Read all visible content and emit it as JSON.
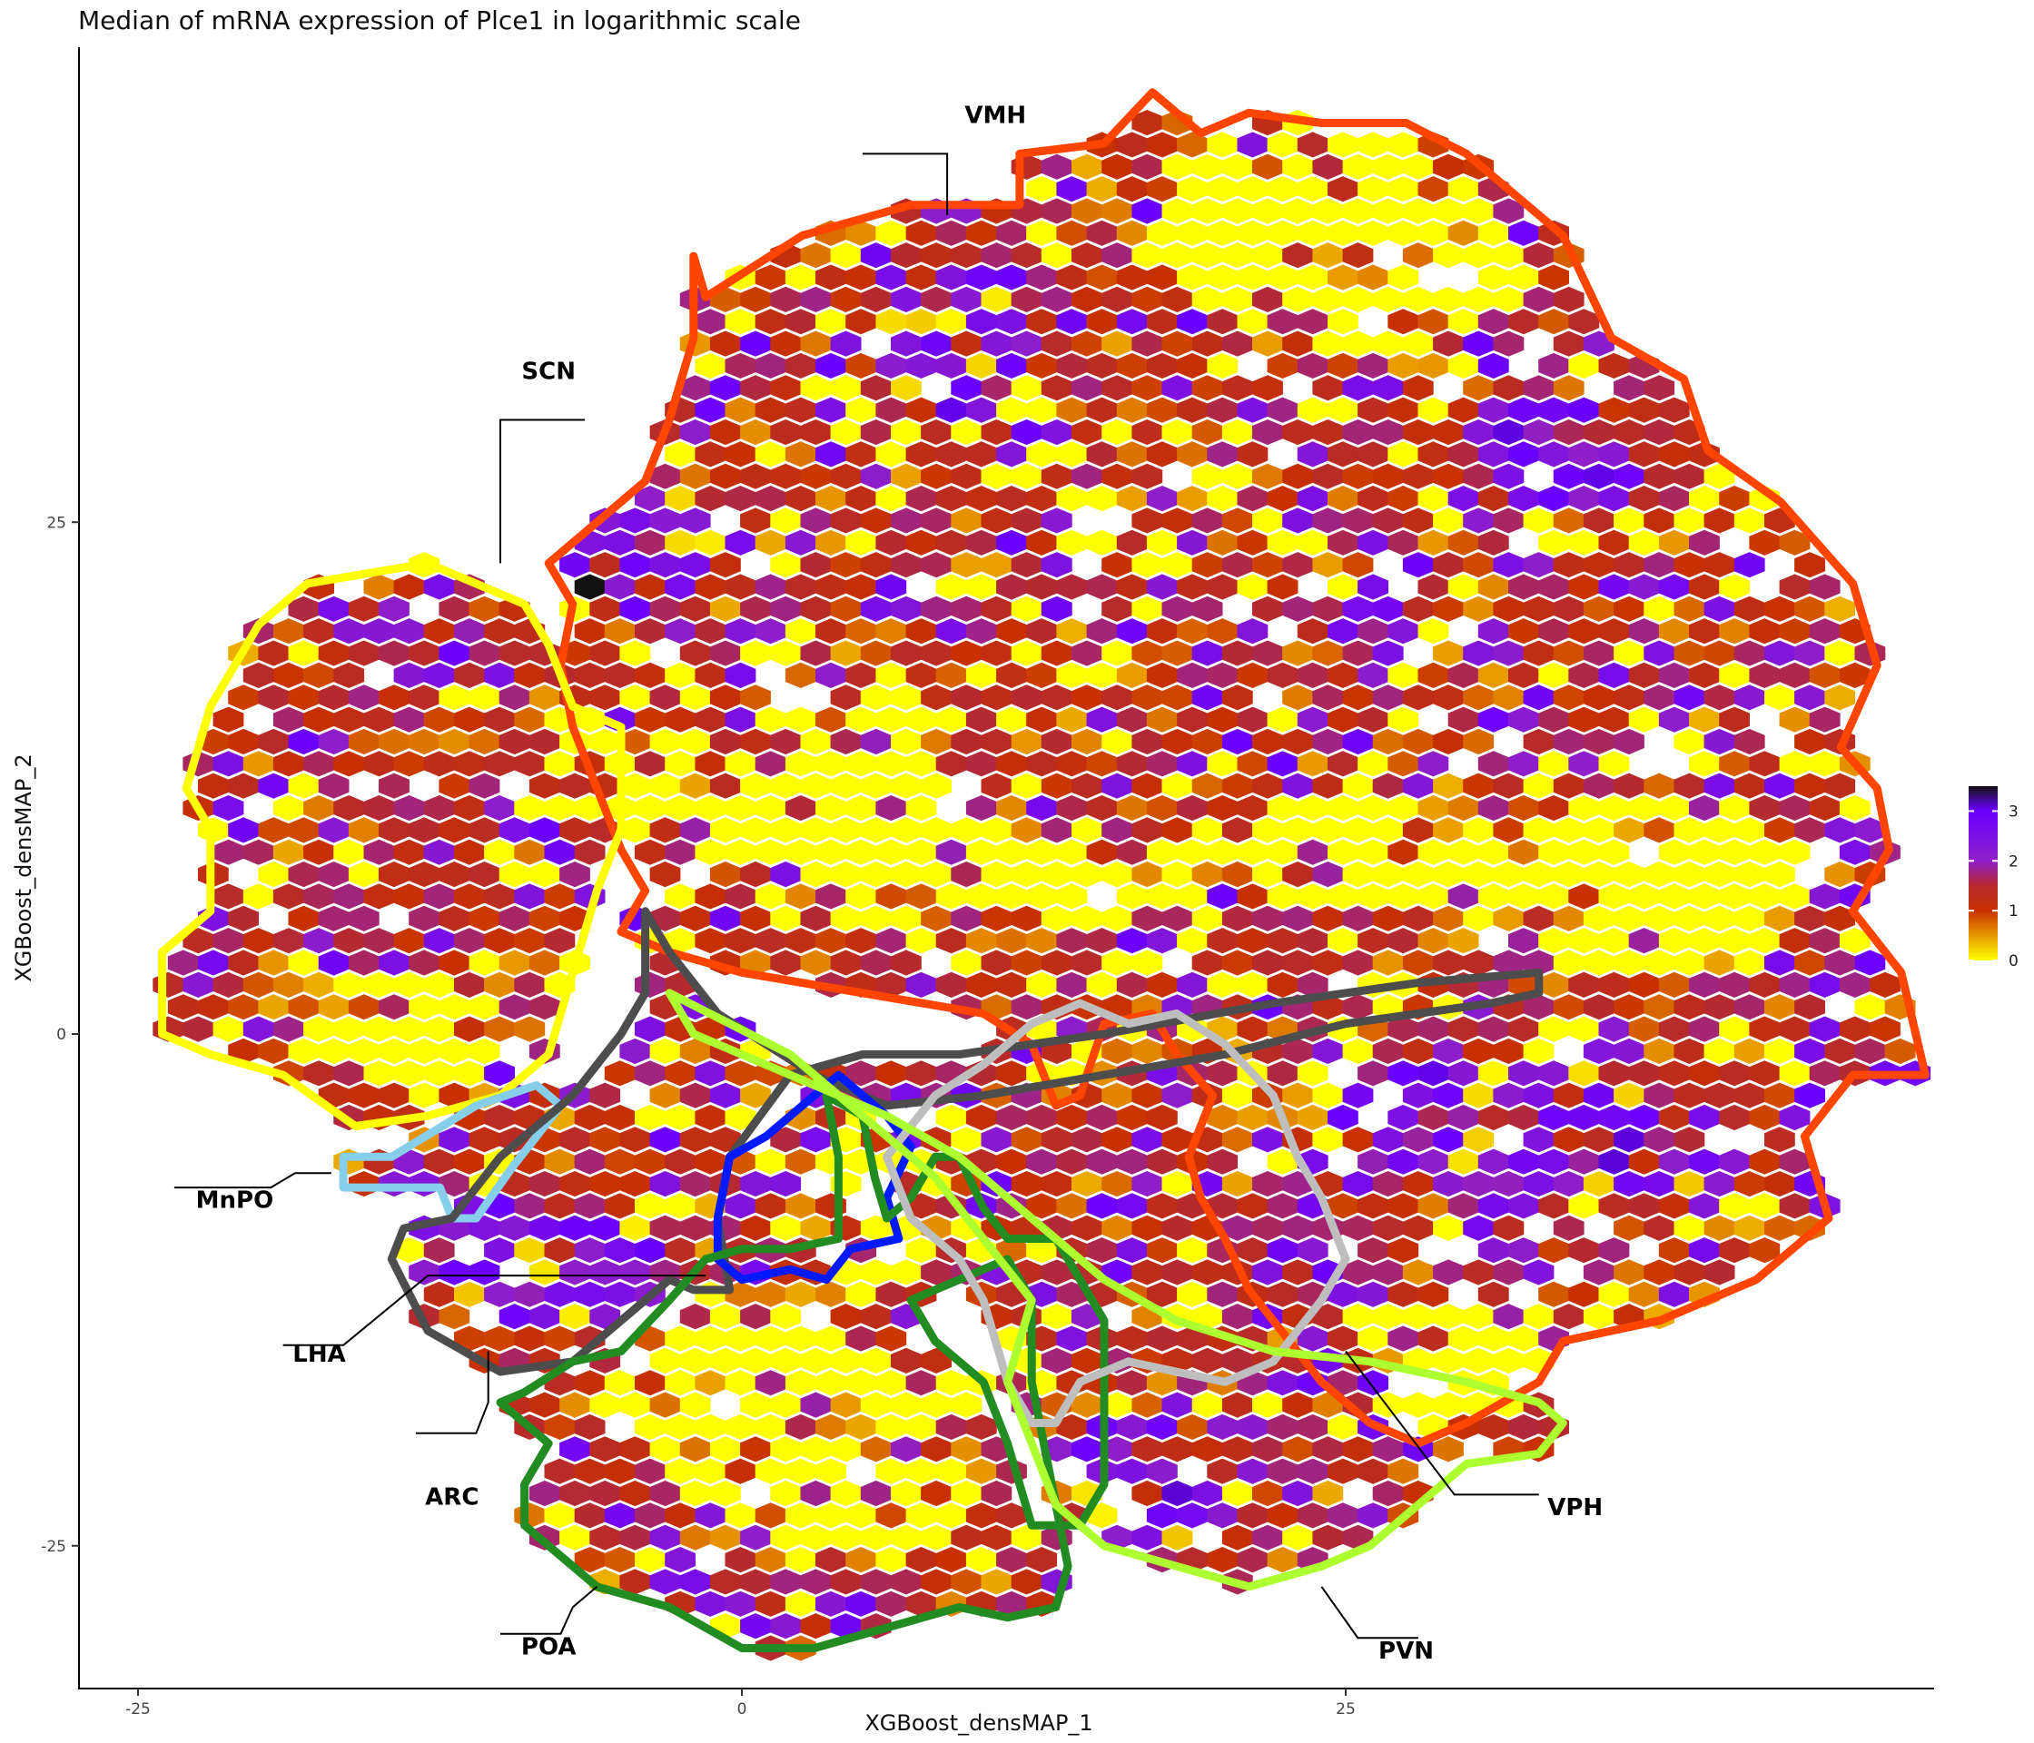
{
  "chart_data": {
    "type": "heatmap",
    "subtype": "hexbin",
    "title": "Median of mRNA expression of Plce1 in logarithmic scale",
    "xlabel": "XGBoost_densMAP_1",
    "ylabel": "XGBoost_densMAP_2",
    "xlim": [
      -28,
      59
    ],
    "ylim": [
      -32,
      48
    ],
    "x_ticks": [
      {
        "value": -25,
        "label": "-25"
      },
      {
        "value": 0,
        "label": "0"
      },
      {
        "value": 25,
        "label": "25"
      }
    ],
    "y_ticks": [
      {
        "value": 25,
        "label": "25"
      },
      {
        "value": 0,
        "label": "0"
      },
      {
        "value": -25,
        "label": "-25"
      }
    ],
    "grid": false,
    "legend": {
      "position": "right",
      "type": "colorbar",
      "range": [
        0,
        3.5
      ],
      "ticks": [
        {
          "value": 0,
          "label": "0"
        },
        {
          "value": 1,
          "label": "1"
        },
        {
          "value": 2,
          "label": "2"
        },
        {
          "value": 3,
          "label": "3"
        }
      ],
      "colors": [
        {
          "value": 0,
          "color": "#FFFF00"
        },
        {
          "value": 0.5,
          "color": "#E89A00"
        },
        {
          "value": 1,
          "color": "#C83000"
        },
        {
          "value": 1.5,
          "color": "#B52A30"
        },
        {
          "value": 2,
          "color": "#8E1FC8"
        },
        {
          "value": 3,
          "color": "#6A00FF"
        },
        {
          "value": 3.5,
          "color": "#111111"
        }
      ]
    },
    "regions": [
      {
        "label": "VMH",
        "color": "#FF4500",
        "label_at": [
          10.5,
          44.5
        ],
        "leader": [
          [
            5,
            43
          ],
          [
            8.5,
            43
          ],
          [
            8.5,
            40
          ]
        ],
        "outline": [
          [
            -2,
            38
          ],
          [
            -1.5,
            36
          ],
          [
            2.5,
            39
          ],
          [
            7,
            40.5
          ],
          [
            11.5,
            40.5
          ],
          [
            11.5,
            43
          ],
          [
            15,
            43.5
          ],
          [
            17,
            46
          ],
          [
            19,
            44
          ],
          [
            21,
            45
          ],
          [
            24,
            44.5
          ],
          [
            27.5,
            44.5
          ],
          [
            30,
            43
          ],
          [
            34,
            39
          ],
          [
            36,
            34
          ],
          [
            39,
            32
          ],
          [
            40,
            28.5
          ],
          [
            43,
            26
          ],
          [
            46,
            22
          ],
          [
            47,
            18
          ],
          [
            45.5,
            14
          ],
          [
            47,
            12
          ],
          [
            47.5,
            9
          ],
          [
            46,
            6
          ],
          [
            48,
            3
          ],
          [
            49,
            -2
          ],
          [
            46,
            -2
          ],
          [
            44,
            -5
          ],
          [
            45,
            -9
          ],
          [
            42,
            -12
          ],
          [
            38,
            -14
          ],
          [
            34,
            -15
          ],
          [
            33,
            -17
          ],
          [
            30,
            -19
          ],
          [
            28,
            -20
          ],
          [
            26,
            -19
          ],
          [
            24,
            -17
          ],
          [
            22,
            -14
          ],
          [
            21,
            -12.5
          ],
          [
            20,
            -10
          ],
          [
            19,
            -8
          ],
          [
            18.5,
            -6
          ],
          [
            19.5,
            -3
          ],
          [
            18,
            -1
          ],
          [
            17,
            1
          ],
          [
            15,
            0.5
          ],
          [
            14,
            -3
          ],
          [
            13,
            -3.5
          ],
          [
            12,
            -0.5
          ],
          [
            10,
            1
          ],
          [
            5,
            2
          ],
          [
            0,
            3
          ],
          [
            -3,
            4
          ],
          [
            -5,
            5
          ],
          [
            -4,
            7
          ],
          [
            -5,
            9
          ],
          [
            -6,
            12
          ],
          [
            -7,
            15
          ],
          [
            -7.5,
            18
          ],
          [
            -7,
            21
          ],
          [
            -8,
            23
          ],
          [
            -6,
            25
          ],
          [
            -4,
            27
          ],
          [
            -3,
            30
          ],
          [
            -2,
            34
          ],
          [
            -2,
            38
          ]
        ]
      },
      {
        "label": "SCN",
        "color": "#FFFF00",
        "label_at": [
          -8,
          32
        ],
        "leader": [
          [
            -6.5,
            30
          ],
          [
            -10,
            30
          ],
          [
            -10,
            23
          ]
        ],
        "outline": [
          [
            -18,
            22
          ],
          [
            -13,
            23
          ],
          [
            -9,
            21
          ],
          [
            -8,
            19
          ],
          [
            -7,
            16
          ],
          [
            -5,
            15
          ],
          [
            -5,
            10
          ],
          [
            -6,
            7
          ],
          [
            -7,
            3
          ],
          [
            -8,
            -1
          ],
          [
            -10,
            -3
          ],
          [
            -13,
            -4
          ],
          [
            -16,
            -4.5
          ],
          [
            -19,
            -2
          ],
          [
            -22,
            -1
          ],
          [
            -24,
            0
          ],
          [
            -24,
            4
          ],
          [
            -22,
            6
          ],
          [
            -22,
            10
          ],
          [
            -23,
            12
          ],
          [
            -22,
            16
          ],
          [
            -20,
            20
          ],
          [
            -18,
            22
          ]
        ]
      },
      {
        "label": "MnPO",
        "color": "#87CEEB",
        "label_at": [
          -21,
          -8.5
        ],
        "leader": [
          [
            -23.5,
            -7.5
          ],
          [
            -19.5,
            -7.5
          ],
          [
            -18.5,
            -6.8
          ],
          [
            -17,
            -6.8
          ]
        ],
        "outline": [
          [
            -16.5,
            -6
          ],
          [
            -14.5,
            -6
          ],
          [
            -11,
            -3.5
          ],
          [
            -8.5,
            -2.5
          ],
          [
            -7.5,
            -3.5
          ],
          [
            -9.5,
            -6.5
          ],
          [
            -11,
            -9
          ],
          [
            -12,
            -9
          ],
          [
            -12.5,
            -7.5
          ],
          [
            -14,
            -7.5
          ],
          [
            -16.5,
            -7.5
          ],
          [
            -16.5,
            -6
          ]
        ]
      },
      {
        "label": "LHA",
        "color": "#4D4D4D",
        "label_at": [
          -17.5,
          -16
        ],
        "leader": [
          [
            -19,
            -15.2
          ],
          [
            -16.5,
            -15.2
          ],
          [
            -13,
            -11.8
          ],
          [
            -1.5,
            -11.8
          ]
        ],
        "outline": [
          [
            -4,
            6
          ],
          [
            -3,
            4
          ],
          [
            -1,
            1
          ],
          [
            1,
            -0.5
          ],
          [
            3,
            -2
          ],
          [
            6,
            -3.5
          ],
          [
            10,
            -3
          ],
          [
            15,
            -2
          ],
          [
            20,
            -1
          ],
          [
            25,
            0.5
          ],
          [
            31,
            1.5
          ],
          [
            33,
            2
          ],
          [
            33,
            3
          ],
          [
            28,
            2.5
          ],
          [
            22,
            1.5
          ],
          [
            15,
            0
          ],
          [
            9,
            -1
          ],
          [
            5,
            -1
          ],
          [
            2,
            -2
          ],
          [
            -0.5,
            -6
          ],
          [
            -1,
            -9
          ],
          [
            -0.5,
            -12.5
          ],
          [
            -2,
            -12.5
          ],
          [
            -3,
            -12
          ],
          [
            -5,
            -14
          ],
          [
            -7,
            -16
          ],
          [
            -10,
            -16.5
          ],
          [
            -13,
            -14.5
          ],
          [
            -14.5,
            -11
          ],
          [
            -14,
            -9.5
          ],
          [
            -12,
            -9
          ],
          [
            -10,
            -6
          ],
          [
            -7,
            -3
          ],
          [
            -5,
            0
          ],
          [
            -4,
            2
          ],
          [
            -4,
            6
          ]
        ]
      },
      {
        "label": "ARC",
        "color": "#0019FF",
        "label_at": [
          -12,
          -23
        ],
        "leader": [
          [
            -13.5,
            -19.5
          ],
          [
            -11,
            -19.5
          ],
          [
            -10.5,
            -18
          ],
          [
            -10.5,
            -15.5
          ]
        ],
        "outline": [
          [
            1,
            -5
          ],
          [
            3,
            -3
          ],
          [
            4,
            -2
          ],
          [
            6,
            -4
          ],
          [
            7,
            -5.5
          ],
          [
            6,
            -8
          ],
          [
            6.5,
            -10
          ],
          [
            4.5,
            -10.5
          ],
          [
            3.5,
            -12
          ],
          [
            2,
            -11.5
          ],
          [
            0,
            -12
          ],
          [
            -1,
            -11
          ],
          [
            -1,
            -9
          ],
          [
            -0.5,
            -6
          ],
          [
            1,
            -5
          ]
        ]
      },
      {
        "label": "POA",
        "color": "#228B22",
        "label_at": [
          -8,
          -30.3
        ],
        "leader": [
          [
            -10,
            -29.3
          ],
          [
            -7.5,
            -29.3
          ],
          [
            -7,
            -28
          ],
          [
            -6,
            -27
          ]
        ],
        "outline": [
          [
            -9,
            -17.5
          ],
          [
            -7,
            -16
          ],
          [
            -5,
            -15.5
          ],
          [
            -3,
            -13
          ],
          [
            -1.5,
            -11
          ],
          [
            0,
            -10.5
          ],
          [
            2,
            -10.5
          ],
          [
            4,
            -10
          ],
          [
            4,
            -6
          ],
          [
            3.5,
            -3
          ],
          [
            5,
            -4
          ],
          [
            5.5,
            -7
          ],
          [
            6,
            -9
          ],
          [
            7,
            -8
          ],
          [
            8,
            -6
          ],
          [
            9,
            -6
          ],
          [
            10,
            -8.5
          ],
          [
            11,
            -10
          ],
          [
            13,
            -10
          ],
          [
            14,
            -12
          ],
          [
            15,
            -14
          ],
          [
            15,
            -18
          ],
          [
            15,
            -22
          ],
          [
            14,
            -24
          ],
          [
            12,
            -24
          ],
          [
            11,
            -20
          ],
          [
            10,
            -17
          ],
          [
            8,
            -15
          ],
          [
            7,
            -13
          ],
          [
            9,
            -12
          ],
          [
            11,
            -11
          ],
          [
            12,
            -13
          ],
          [
            12,
            -17
          ],
          [
            13,
            -23
          ],
          [
            13.5,
            -26
          ],
          [
            13,
            -28
          ],
          [
            11,
            -28.5
          ],
          [
            9,
            -28
          ],
          [
            6,
            -29
          ],
          [
            3,
            -30
          ],
          [
            0,
            -30
          ],
          [
            -3,
            -28
          ],
          [
            -6,
            -27
          ],
          [
            -9,
            -24
          ],
          [
            -9,
            -22
          ],
          [
            -8,
            -20
          ],
          [
            -10,
            -18
          ],
          [
            -9,
            -17.5
          ]
        ]
      },
      {
        "label": "VPH",
        "color": "#BEBEBE",
        "label_at": [
          34.5,
          -23.5
        ],
        "leader": [
          [
            33,
            -22.5
          ],
          [
            29.5,
            -22.5
          ],
          [
            25,
            -15.5
          ]
        ],
        "outline": [
          [
            6,
            -6
          ],
          [
            8,
            -3
          ],
          [
            10,
            -1.5
          ],
          [
            12,
            0.5
          ],
          [
            14,
            1.5
          ],
          [
            16,
            0.5
          ],
          [
            18,
            1
          ],
          [
            20,
            -0.5
          ],
          [
            22,
            -3
          ],
          [
            23,
            -6
          ],
          [
            24,
            -8
          ],
          [
            25,
            -11
          ],
          [
            24,
            -13
          ],
          [
            22,
            -16
          ],
          [
            20,
            -17
          ],
          [
            18,
            -16.5
          ],
          [
            16,
            -16
          ],
          [
            14,
            -17
          ],
          [
            13,
            -19
          ],
          [
            12,
            -19
          ],
          [
            11,
            -17
          ],
          [
            10,
            -13
          ],
          [
            9,
            -11
          ],
          [
            7,
            -9
          ],
          [
            6,
            -6
          ]
        ]
      },
      {
        "label": "PVN",
        "color": "#ADFF2F",
        "label_at": [
          27.5,
          -30.5
        ],
        "leader": [
          [
            28,
            -29.5
          ],
          [
            25.5,
            -29.5
          ],
          [
            24,
            -27
          ]
        ],
        "outline": [
          [
            -3,
            2
          ],
          [
            -2,
            0
          ],
          [
            2,
            -2
          ],
          [
            6,
            -4
          ],
          [
            9,
            -6
          ],
          [
            12,
            -9
          ],
          [
            15,
            -12
          ],
          [
            18,
            -14
          ],
          [
            22,
            -15.5
          ],
          [
            26,
            -16
          ],
          [
            30,
            -17
          ],
          [
            33,
            -18
          ],
          [
            34,
            -19
          ],
          [
            33,
            -20.5
          ],
          [
            30,
            -21
          ],
          [
            28,
            -23
          ],
          [
            26,
            -25
          ],
          [
            24,
            -26
          ],
          [
            21,
            -27
          ],
          [
            18,
            -26
          ],
          [
            15,
            -25
          ],
          [
            13,
            -23
          ],
          [
            12,
            -20
          ],
          [
            11,
            -17
          ],
          [
            12,
            -13
          ],
          [
            10,
            -10
          ],
          [
            8,
            -7
          ],
          [
            5,
            -4
          ],
          [
            2,
            -1
          ],
          [
            -3,
            2
          ]
        ]
      }
    ]
  }
}
